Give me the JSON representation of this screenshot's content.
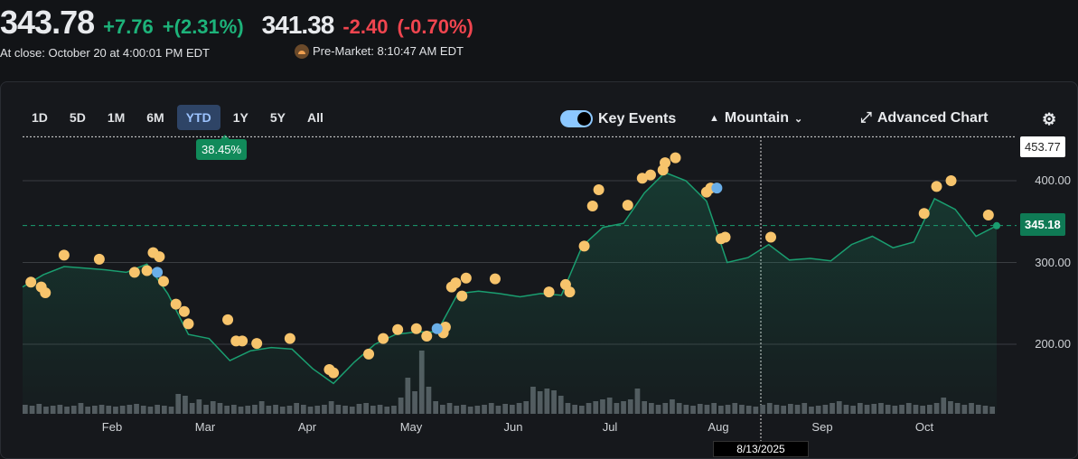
{
  "header": {
    "close_price": "343.78",
    "close_change": "+7.76",
    "close_change_pct": "+(2.31%)",
    "close_label": "At close: October 20 at 4:00:01 PM EDT",
    "pre_price": "341.38",
    "pre_change": "-2.40",
    "pre_change_pct": "(-0.70%)",
    "pre_label": "Pre-Market: 8:10:47 AM EDT"
  },
  "ranges": [
    "1D",
    "5D",
    "1M",
    "6M",
    "YTD",
    "1Y",
    "5Y",
    "All"
  ],
  "active_range": "YTD",
  "ytd_change": "38.45%",
  "controls": {
    "key_events": "Key Events",
    "chart_type": "Mountain",
    "advanced": "Advanced Chart"
  },
  "colors": {
    "line": "#1a9e70",
    "event": "#f7c46c",
    "event_blue": "#6aaee8",
    "up": "#1db37a",
    "down": "#f0454f"
  },
  "chart_data": {
    "type": "area",
    "ylim": [
      155,
      455
    ],
    "yticks": [
      "400.00",
      "300.00",
      "200.00"
    ],
    "ytick_values": [
      400,
      300,
      200
    ],
    "high_label": "453.77",
    "high_value": 453.77,
    "prev_close_label": "345.18",
    "prev_close_value": 345.18,
    "months": [
      "Feb",
      "Mar",
      "Apr",
      "May",
      "Jun",
      "Jul",
      "Aug",
      "Sep",
      "Oct"
    ],
    "crosshair_label": "8/13/2025",
    "prices": [
      270,
      285,
      295,
      293,
      291,
      288,
      298,
      262,
      212,
      207,
      180,
      192,
      196,
      194,
      170,
      152,
      178,
      200,
      212,
      215,
      215,
      262,
      265,
      262,
      258,
      262,
      260,
      320,
      343,
      348,
      385,
      410,
      400,
      375,
      300,
      306,
      322,
      303,
      305,
      302,
      322,
      332,
      318,
      325,
      378,
      365,
      332,
      345
    ],
    "events": [
      [
        0.4,
        276
      ],
      [
        0.9,
        270
      ],
      [
        1.1,
        263
      ],
      [
        2.0,
        309
      ],
      [
        3.7,
        304
      ],
      [
        5.4,
        288
      ],
      [
        6.0,
        290
      ],
      [
        6.3,
        312
      ],
      [
        6.6,
        307
      ],
      [
        6.8,
        277
      ],
      [
        7.4,
        249
      ],
      [
        7.8,
        240
      ],
      [
        8.0,
        225
      ],
      [
        9.9,
        230
      ],
      [
        10.3,
        204
      ],
      [
        10.6,
        204
      ],
      [
        11.3,
        201
      ],
      [
        12.9,
        207
      ],
      [
        14.8,
        169
      ],
      [
        15.0,
        165
      ],
      [
        16.7,
        188
      ],
      [
        17.4,
        207
      ],
      [
        18.1,
        218
      ],
      [
        19.0,
        219
      ],
      [
        19.5,
        210
      ],
      [
        20.3,
        214
      ],
      [
        20.4,
        221
      ],
      [
        20.7,
        270
      ],
      [
        20.9,
        275
      ],
      [
        21.2,
        259
      ],
      [
        21.4,
        281
      ],
      [
        22.8,
        280
      ],
      [
        25.4,
        264
      ],
      [
        26.2,
        273
      ],
      [
        26.4,
        264
      ],
      [
        27.1,
        320
      ],
      [
        27.5,
        369
      ],
      [
        27.8,
        389
      ],
      [
        29.2,
        370
      ],
      [
        29.9,
        403
      ],
      [
        30.3,
        407
      ],
      [
        30.9,
        413
      ],
      [
        31.0,
        422
      ],
      [
        31.5,
        428
      ],
      [
        33.0,
        386
      ],
      [
        33.2,
        391
      ],
      [
        33.7,
        329
      ],
      [
        33.9,
        331
      ],
      [
        36.1,
        331
      ],
      [
        43.5,
        360
      ],
      [
        44.1,
        393
      ],
      [
        44.8,
        400
      ],
      [
        46.6,
        358
      ]
    ],
    "events_blue": [
      [
        6.5,
        288
      ],
      [
        20.0,
        219
      ],
      [
        33.5,
        391
      ]
    ],
    "volumes": [
      10,
      9,
      11,
      8,
      9,
      10,
      8,
      9,
      12,
      8,
      9,
      10,
      9,
      8,
      9,
      10,
      11,
      9,
      8,
      10,
      9,
      8,
      22,
      20,
      12,
      16,
      10,
      14,
      12,
      9,
      10,
      8,
      9,
      10,
      14,
      9,
      10,
      8,
      9,
      12,
      10,
      8,
      9,
      10,
      14,
      10,
      9,
      8,
      11,
      12,
      9,
      10,
      8,
      9,
      18,
      40,
      25,
      70,
      30,
      14,
      10,
      12,
      9,
      10,
      8,
      9,
      10,
      12,
      9,
      11,
      10,
      12,
      14,
      30,
      25,
      28,
      26,
      20,
      12,
      10,
      9,
      12,
      14,
      16,
      18,
      12,
      14,
      16,
      28,
      14,
      12,
      10,
      12,
      16,
      12,
      10,
      9,
      11,
      10,
      12,
      9,
      10,
      12,
      10,
      9,
      8,
      10,
      12,
      10,
      9,
      11,
      10,
      12,
      8,
      9,
      10,
      12,
      14,
      10,
      9,
      12,
      10,
      11,
      12,
      10,
      9,
      10,
      12,
      10,
      9,
      10,
      12,
      18,
      14,
      12,
      10,
      12,
      10,
      9,
      8
    ]
  }
}
